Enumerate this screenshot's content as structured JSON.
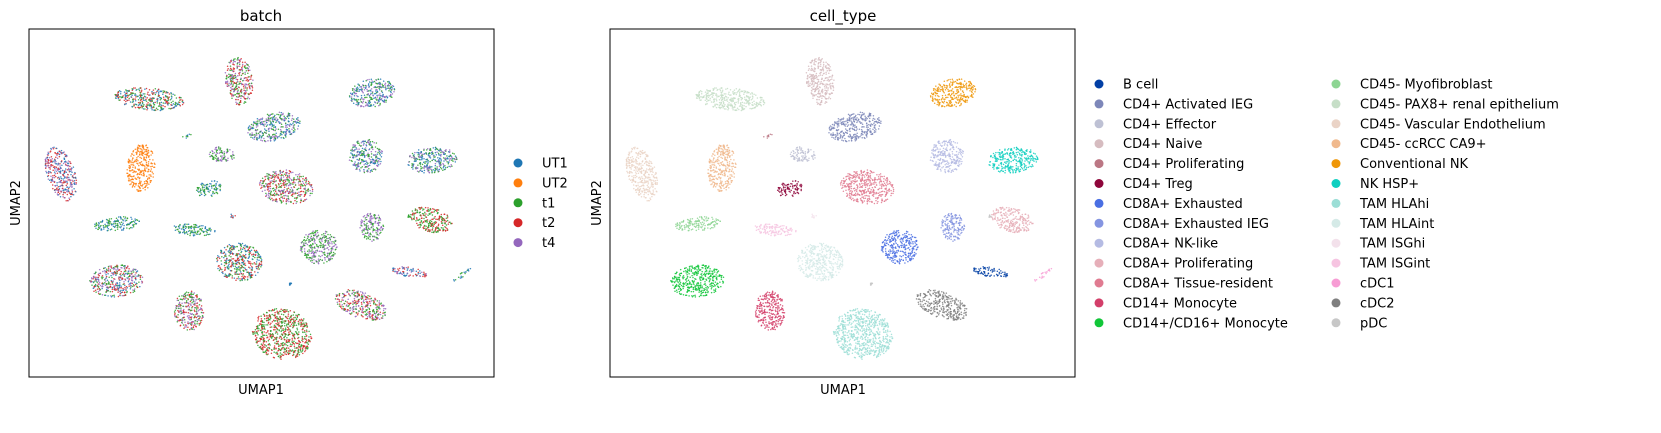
{
  "chart_data": [
    {
      "type": "scatter",
      "title": "batch",
      "xlabel": "UMAP1",
      "ylabel": "UMAP2",
      "legend_position": "right",
      "legend": [
        {
          "label": "UT1",
          "color": "#1f77b4"
        },
        {
          "label": "UT2",
          "color": "#ff7f0e"
        },
        {
          "label": "t1",
          "color": "#2ca02c"
        },
        {
          "label": "t2",
          "color": "#d62728"
        },
        {
          "label": "t4",
          "color": "#9467bd"
        }
      ],
      "clusters": [
        {
          "x": 210,
          "y": 52,
          "rx": 14,
          "ry": 24,
          "rot": -5,
          "colors": [
            "#2ca02c",
            "#9467bd",
            "#d62728"
          ]
        },
        {
          "x": 120,
          "y": 70,
          "rx": 35,
          "ry": 11,
          "rot": 6,
          "colors": [
            "#d62728",
            "#1f77b4",
            "#2ca02c"
          ]
        },
        {
          "x": 343,
          "y": 64,
          "rx": 23,
          "ry": 14,
          "rot": -12,
          "colors": [
            "#9467bd",
            "#2ca02c",
            "#1f77b4"
          ]
        },
        {
          "x": 245,
          "y": 98,
          "rx": 27,
          "ry": 14,
          "rot": -12,
          "colors": [
            "#2ca02c",
            "#1f77b4",
            "#9467bd"
          ]
        },
        {
          "x": 32,
          "y": 145,
          "rx": 14,
          "ry": 28,
          "rot": -18,
          "colors": [
            "#1f77b4",
            "#9467bd",
            "#d62728"
          ]
        },
        {
          "x": 112,
          "y": 139,
          "rx": 14,
          "ry": 24,
          "rot": 5,
          "colors": [
            "#ff7f0e"
          ]
        },
        {
          "x": 193,
          "y": 126,
          "rx": 13,
          "ry": 8,
          "rot": 10,
          "colors": [
            "#2ca02c",
            "#9467bd"
          ]
        },
        {
          "x": 337,
          "y": 127,
          "rx": 17,
          "ry": 17,
          "rot": 0,
          "colors": [
            "#9467bd",
            "#1f77b4",
            "#2ca02c"
          ]
        },
        {
          "x": 403,
          "y": 131,
          "rx": 25,
          "ry": 13,
          "rot": -5,
          "colors": [
            "#9467bd",
            "#1f77b4",
            "#2ca02c"
          ]
        },
        {
          "x": 180,
          "y": 160,
          "rx": 13,
          "ry": 8,
          "rot": -15,
          "colors": [
            "#2ca02c",
            "#1f77b4"
          ]
        },
        {
          "x": 257,
          "y": 158,
          "rx": 27,
          "ry": 17,
          "rot": 8,
          "colors": [
            "#9467bd",
            "#d62728",
            "#2ca02c"
          ]
        },
        {
          "x": 88,
          "y": 195,
          "rx": 23,
          "ry": 7,
          "rot": -5,
          "colors": [
            "#1f77b4",
            "#2ca02c"
          ]
        },
        {
          "x": 165,
          "y": 201,
          "rx": 22,
          "ry": 6,
          "rot": 5,
          "colors": [
            "#1f77b4",
            "#2ca02c"
          ]
        },
        {
          "x": 343,
          "y": 198,
          "rx": 12,
          "ry": 15,
          "rot": 0,
          "colors": [
            "#2ca02c",
            "#9467bd"
          ]
        },
        {
          "x": 402,
          "y": 191,
          "rx": 22,
          "ry": 12,
          "rot": 15,
          "colors": [
            "#2ca02c",
            "#d62728"
          ]
        },
        {
          "x": 290,
          "y": 218,
          "rx": 19,
          "ry": 17,
          "rot": 0,
          "colors": [
            "#2ca02c",
            "#9467bd"
          ]
        },
        {
          "x": 210,
          "y": 233,
          "rx": 23,
          "ry": 19,
          "rot": 5,
          "colors": [
            "#d62728",
            "#2ca02c",
            "#1f77b4"
          ]
        },
        {
          "x": 87,
          "y": 252,
          "rx": 27,
          "ry": 16,
          "rot": -5,
          "colors": [
            "#9467bd",
            "#2ca02c",
            "#d62728",
            "#1f77b4"
          ]
        },
        {
          "x": 380,
          "y": 243,
          "rx": 18,
          "ry": 5,
          "rot": 10,
          "colors": [
            "#9467bd",
            "#1f77b4",
            "#d62728"
          ]
        },
        {
          "x": 160,
          "y": 282,
          "rx": 15,
          "ry": 20,
          "rot": 0,
          "colors": [
            "#9467bd",
            "#d62728",
            "#2ca02c"
          ]
        },
        {
          "x": 332,
          "y": 276,
          "rx": 27,
          "ry": 13,
          "rot": 20,
          "colors": [
            "#2ca02c",
            "#d62728",
            "#9467bd"
          ]
        },
        {
          "x": 253,
          "y": 305,
          "rx": 30,
          "ry": 25,
          "rot": 15,
          "colors": [
            "#d62728",
            "#2ca02c"
          ]
        },
        {
          "x": 158,
          "y": 107,
          "rx": 5,
          "ry": 2,
          "rot": -25,
          "colors": [
            "#2ca02c",
            "#1f77b4"
          ]
        },
        {
          "x": 203,
          "y": 187,
          "rx": 4,
          "ry": 2,
          "rot": 0,
          "colors": [
            "#d62728",
            "#1f77b4"
          ]
        },
        {
          "x": 262,
          "y": 255,
          "rx": 2,
          "ry": 1.5,
          "rot": 0,
          "colors": [
            "#1f77b4"
          ]
        },
        {
          "x": 433,
          "y": 246,
          "rx": 11,
          "ry": 2,
          "rot": -35,
          "colors": [
            "#1f77b4",
            "#2ca02c"
          ]
        },
        {
          "x": 380,
          "y": 187,
          "rx": 2,
          "ry": 2,
          "rot": 0,
          "colors": [
            "#2ca02c"
          ]
        }
      ]
    },
    {
      "type": "scatter",
      "title": "cell_type",
      "xlabel": "UMAP1",
      "ylabel": "UMAP2",
      "legend_position": "right",
      "legend": [
        {
          "label": "B cell",
          "color": "#023fa5"
        },
        {
          "label": "CD4+ Activated IEG",
          "color": "#7d87b9"
        },
        {
          "label": "CD4+ Effector",
          "color": "#bec1d4"
        },
        {
          "label": "CD4+ Naive",
          "color": "#d6bcc0"
        },
        {
          "label": "CD4+ Proliferating",
          "color": "#bb7784"
        },
        {
          "label": "CD4+ Treg",
          "color": "#8e063b"
        },
        {
          "label": "CD8A+ Exhausted",
          "color": "#4a6fe3"
        },
        {
          "label": "CD8A+ Exhausted IEG",
          "color": "#8595e1"
        },
        {
          "label": "CD8A+ NK-like",
          "color": "#b5bbe3"
        },
        {
          "label": "CD8A+ Proliferating",
          "color": "#e6afb9"
        },
        {
          "label": "CD8A+ Tissue-resident",
          "color": "#e07b91"
        },
        {
          "label": "CD14+ Monocyte",
          "color": "#d33f6a"
        },
        {
          "label": "CD14+/CD16+ Monocyte",
          "color": "#11c638"
        },
        {
          "label": "CD45- Myofibroblast",
          "color": "#8dd593"
        },
        {
          "label": "CD45- PAX8+ renal epithelium",
          "color": "#c6dec7"
        },
        {
          "label": "CD45- Vascular Endothelium",
          "color": "#ead3c6"
        },
        {
          "label": "CD45- ccRCC CA9+",
          "color": "#f0b98d"
        },
        {
          "label": "Conventional NK",
          "color": "#ef9708"
        },
        {
          "label": "NK HSP+",
          "color": "#0fcfc0"
        },
        {
          "label": "TAM HLAhi",
          "color": "#9cded6"
        },
        {
          "label": "TAM HLAint",
          "color": "#d5eae7"
        },
        {
          "label": "TAM ISGhi",
          "color": "#f3e1eb"
        },
        {
          "label": "TAM ISGint",
          "color": "#f6c4e1"
        },
        {
          "label": "cDC1",
          "color": "#f79cd4"
        },
        {
          "label": "cDC2",
          "color": "#7f7f7f"
        },
        {
          "label": "pDC",
          "color": "#c7c7c7"
        }
      ],
      "clusters": [
        {
          "x": 210,
          "y": 52,
          "rx": 14,
          "ry": 24,
          "rot": -5,
          "colors": [
            "#d6bcc0"
          ]
        },
        {
          "x": 120,
          "y": 70,
          "rx": 35,
          "ry": 11,
          "rot": 6,
          "colors": [
            "#c6dec7"
          ]
        },
        {
          "x": 343,
          "y": 64,
          "rx": 23,
          "ry": 14,
          "rot": -12,
          "colors": [
            "#ef9708"
          ]
        },
        {
          "x": 245,
          "y": 98,
          "rx": 27,
          "ry": 14,
          "rot": -12,
          "colors": [
            "#7d87b9"
          ]
        },
        {
          "x": 32,
          "y": 145,
          "rx": 14,
          "ry": 28,
          "rot": -18,
          "colors": [
            "#ead3c6"
          ]
        },
        {
          "x": 112,
          "y": 139,
          "rx": 14,
          "ry": 24,
          "rot": 5,
          "colors": [
            "#f0b98d"
          ]
        },
        {
          "x": 193,
          "y": 126,
          "rx": 13,
          "ry": 8,
          "rot": 10,
          "colors": [
            "#bec1d4"
          ]
        },
        {
          "x": 337,
          "y": 127,
          "rx": 17,
          "ry": 17,
          "rot": 0,
          "colors": [
            "#b5bbe3"
          ]
        },
        {
          "x": 403,
          "y": 131,
          "rx": 25,
          "ry": 13,
          "rot": -5,
          "colors": [
            "#0fcfc0"
          ]
        },
        {
          "x": 180,
          "y": 160,
          "rx": 13,
          "ry": 8,
          "rot": -15,
          "colors": [
            "#8e063b"
          ]
        },
        {
          "x": 257,
          "y": 158,
          "rx": 27,
          "ry": 17,
          "rot": 8,
          "colors": [
            "#e07b91"
          ]
        },
        {
          "x": 88,
          "y": 195,
          "rx": 23,
          "ry": 7,
          "rot": -5,
          "colors": [
            "#8dd593"
          ]
        },
        {
          "x": 165,
          "y": 201,
          "rx": 22,
          "ry": 6,
          "rot": 5,
          "colors": [
            "#f6c4e1"
          ]
        },
        {
          "x": 343,
          "y": 198,
          "rx": 12,
          "ry": 15,
          "rot": 0,
          "colors": [
            "#8595e1"
          ]
        },
        {
          "x": 402,
          "y": 191,
          "rx": 22,
          "ry": 12,
          "rot": 15,
          "colors": [
            "#e6afb9"
          ]
        },
        {
          "x": 290,
          "y": 218,
          "rx": 19,
          "ry": 17,
          "rot": 0,
          "colors": [
            "#4a6fe3"
          ]
        },
        {
          "x": 210,
          "y": 233,
          "rx": 23,
          "ry": 19,
          "rot": 5,
          "colors": [
            "#d5eae7"
          ]
        },
        {
          "x": 87,
          "y": 252,
          "rx": 27,
          "ry": 16,
          "rot": -5,
          "colors": [
            "#11c638"
          ]
        },
        {
          "x": 380,
          "y": 243,
          "rx": 18,
          "ry": 5,
          "rot": 10,
          "colors": [
            "#023fa5"
          ]
        },
        {
          "x": 160,
          "y": 282,
          "rx": 15,
          "ry": 20,
          "rot": 0,
          "colors": [
            "#d33f6a"
          ]
        },
        {
          "x": 332,
          "y": 276,
          "rx": 27,
          "ry": 13,
          "rot": 20,
          "colors": [
            "#7f7f7f"
          ]
        },
        {
          "x": 253,
          "y": 305,
          "rx": 30,
          "ry": 25,
          "rot": 15,
          "colors": [
            "#9cded6"
          ]
        },
        {
          "x": 158,
          "y": 107,
          "rx": 5,
          "ry": 2,
          "rot": -25,
          "colors": [
            "#bb7784"
          ]
        },
        {
          "x": 203,
          "y": 187,
          "rx": 4,
          "ry": 2,
          "rot": 0,
          "colors": [
            "#f3e1eb"
          ]
        },
        {
          "x": 262,
          "y": 255,
          "rx": 2,
          "ry": 1.5,
          "rot": 0,
          "colors": [
            "#c7c7c7"
          ]
        },
        {
          "x": 433,
          "y": 246,
          "rx": 11,
          "ry": 2,
          "rot": -35,
          "colors": [
            "#f79cd4"
          ]
        },
        {
          "x": 380,
          "y": 187,
          "rx": 2,
          "ry": 2,
          "rot": 0,
          "colors": [
            "#c7c7c7"
          ]
        }
      ]
    }
  ]
}
